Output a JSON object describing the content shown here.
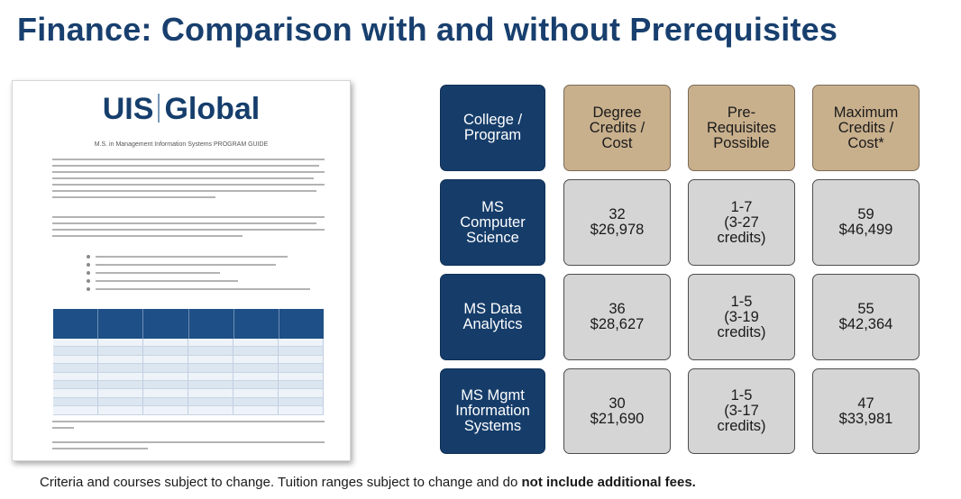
{
  "title": "Finance: Comparison with and without Prerequisites",
  "document": {
    "logo_left": "UIS",
    "logo_right": "Global",
    "heading": "M.S. in Management Information Systems PROGRAM GUIDE"
  },
  "grid": {
    "header": {
      "row_label": "College /\nProgram",
      "columns": [
        "Degree\nCredits /\nCost",
        "Pre-\nRequisites\nPossible",
        "Maximum\nCredits /\nCost*"
      ]
    },
    "rows": [
      {
        "program": "MS\nComputer\nScience",
        "degree": "32\n$26,978",
        "prereq": "1-7\n(3-27\ncredits)",
        "max": "59\n$46,499"
      },
      {
        "program": "MS Data\nAnalytics",
        "degree": "36\n$28,627",
        "prereq": "1-5\n(3-19\ncredits)",
        "max": "55\n$42,364"
      },
      {
        "program": "MS Mgmt\nInformation\nSystems",
        "degree": "30\n$21,690",
        "prereq": "1-5\n(3-17\ncredits)",
        "max": "47\n$33,981"
      }
    ]
  },
  "footer": {
    "text": "Criteria and courses subject to change. Tuition ranges subject to change and do ",
    "bold": "not include additional fees."
  },
  "colors": {
    "title": "#183f6e",
    "navy_tile": "#163d6a",
    "tan_tile": "#c9b08d",
    "gray_tile": "#d5d5d5"
  }
}
